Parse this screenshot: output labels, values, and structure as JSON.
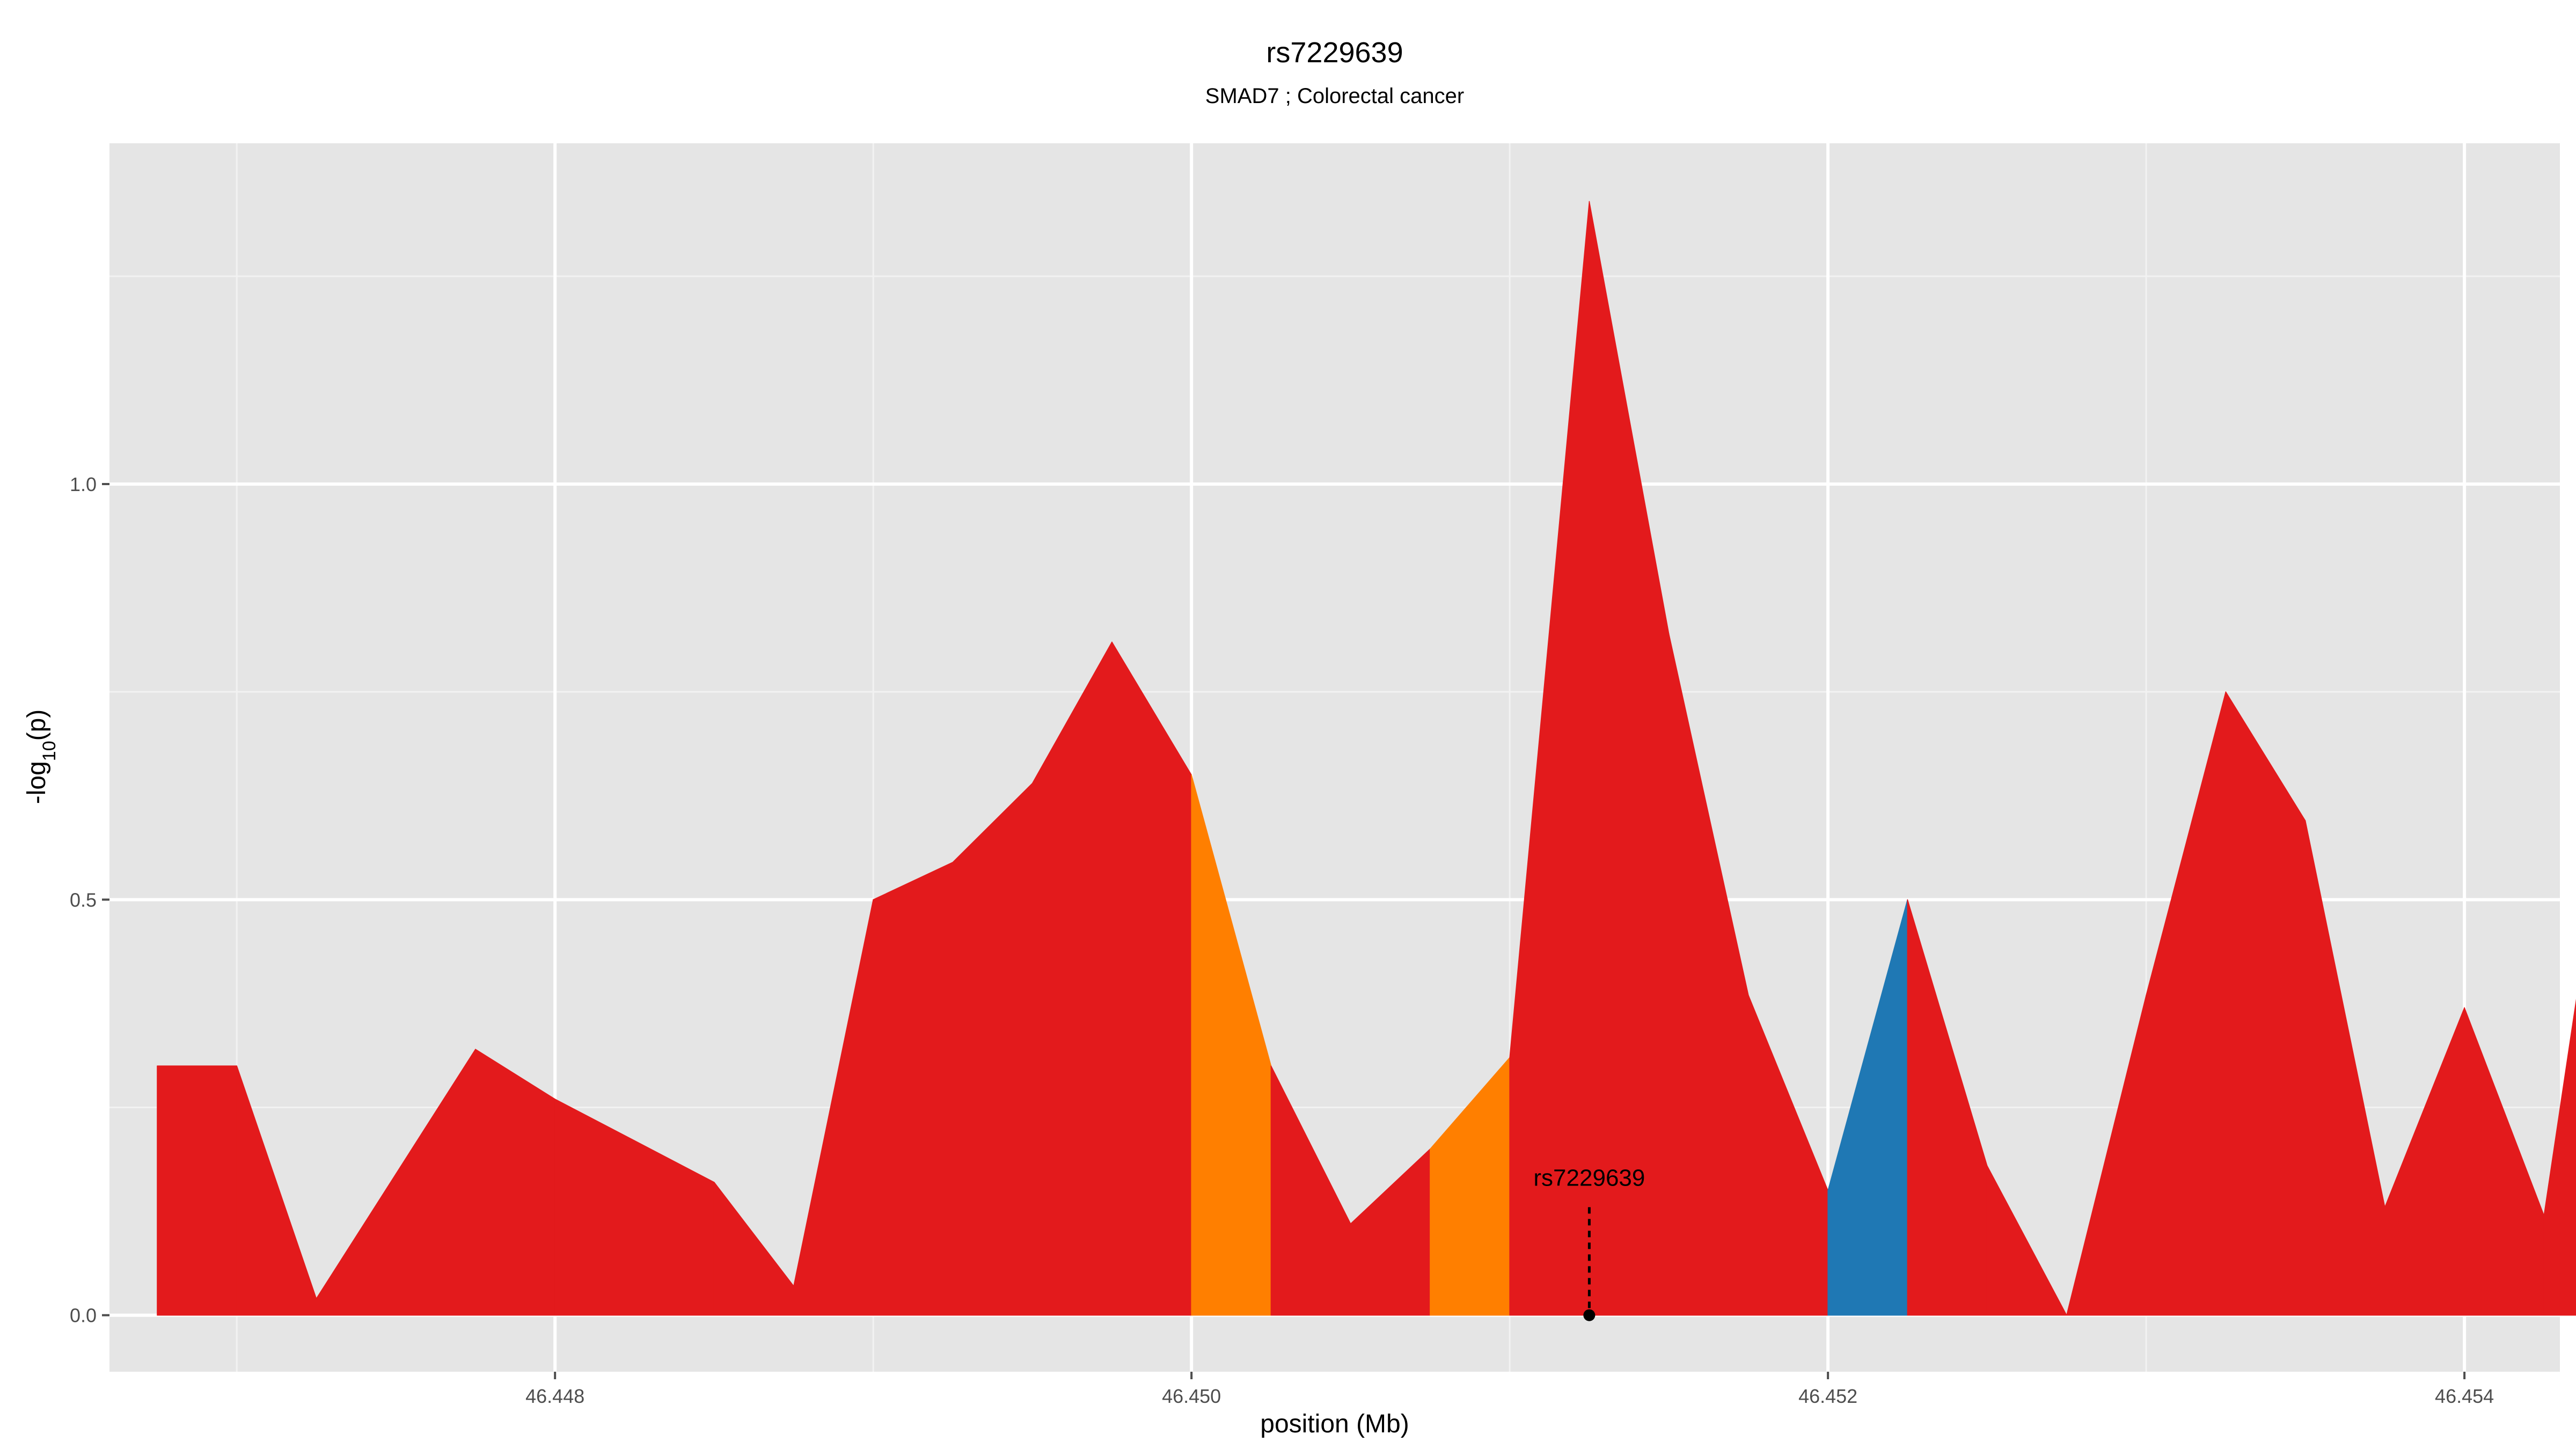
{
  "chart_data": {
    "type": "area",
    "title": "rs7229639",
    "subtitle": "SMAD7 ; Colorectal cancer",
    "xlabel": "position (Mb)",
    "ylabel": "-log10(p)",
    "xlim": [
      46.4466,
      46.4543
    ],
    "ylim": [
      -0.068,
      1.41
    ],
    "x_ticks": [
      46.448,
      46.45,
      46.452,
      46.454
    ],
    "x_tick_labels": [
      "46.448",
      "46.450",
      "46.452",
      "46.454"
    ],
    "y_ticks": [
      0.0,
      0.5,
      1.0
    ],
    "y_tick_labels": [
      "0.0",
      "0.5",
      "1.0"
    ],
    "grid": true,
    "legend": "none",
    "colors": {
      "panel": "#e5e5e5",
      "grid_major": "#ffffff",
      "grid_minor": "#f2f2f2",
      "red": "#e31a1c",
      "orange": "#ff7f00",
      "blue": "#1f78b4"
    },
    "points": [
      {
        "x": 46.44675,
        "y": 0.3,
        "color": "red"
      },
      {
        "x": 46.447,
        "y": 0.3,
        "color": "red"
      },
      {
        "x": 46.44725,
        "y": 0.02,
        "color": "red"
      },
      {
        "x": 46.4475,
        "y": 0.17,
        "color": "red"
      },
      {
        "x": 46.44775,
        "y": 0.32,
        "color": "red"
      },
      {
        "x": 46.448,
        "y": 0.26,
        "color": "red"
      },
      {
        "x": 46.44825,
        "y": 0.21,
        "color": "red"
      },
      {
        "x": 46.4485,
        "y": 0.16,
        "color": "red"
      },
      {
        "x": 46.44875,
        "y": 0.035,
        "color": "red"
      },
      {
        "x": 46.449,
        "y": 0.5,
        "color": "red"
      },
      {
        "x": 46.44925,
        "y": 0.545,
        "color": "red"
      },
      {
        "x": 46.4495,
        "y": 0.64,
        "color": "red"
      },
      {
        "x": 46.44975,
        "y": 0.81,
        "color": "red"
      },
      {
        "x": 46.45,
        "y": 0.65,
        "color": "orange"
      },
      {
        "x": 46.45025,
        "y": 0.3,
        "color": "red"
      },
      {
        "x": 46.4505,
        "y": 0.11,
        "color": "red"
      },
      {
        "x": 46.45075,
        "y": 0.2,
        "color": "orange"
      },
      {
        "x": 46.451,
        "y": 0.31,
        "color": "red"
      },
      {
        "x": 46.45125,
        "y": 1.34,
        "color": "red"
      },
      {
        "x": 46.4515,
        "y": 0.82,
        "color": "red"
      },
      {
        "x": 46.45175,
        "y": 0.385,
        "color": "red"
      },
      {
        "x": 46.452,
        "y": 0.15,
        "color": "blue"
      },
      {
        "x": 46.45225,
        "y": 0.5,
        "color": "red"
      },
      {
        "x": 46.4525,
        "y": 0.18,
        "color": "red"
      },
      {
        "x": 46.45275,
        "y": 0.0,
        "color": "red"
      },
      {
        "x": 46.453,
        "y": 0.385,
        "color": "red"
      },
      {
        "x": 46.45325,
        "y": 0.75,
        "color": "red"
      },
      {
        "x": 46.4535,
        "y": 0.595,
        "color": "red"
      },
      {
        "x": 46.45375,
        "y": 0.13,
        "color": "red"
      },
      {
        "x": 46.454,
        "y": 0.37,
        "color": "red"
      },
      {
        "x": 46.45425,
        "y": 0.12,
        "color": "red"
      },
      {
        "x": 46.4545,
        "y": 0.76,
        "color": "red"
      }
    ],
    "annotation": {
      "label": "rs7229639",
      "x": 46.45125,
      "y": 0.0,
      "line_top_y": 0.13
    }
  }
}
